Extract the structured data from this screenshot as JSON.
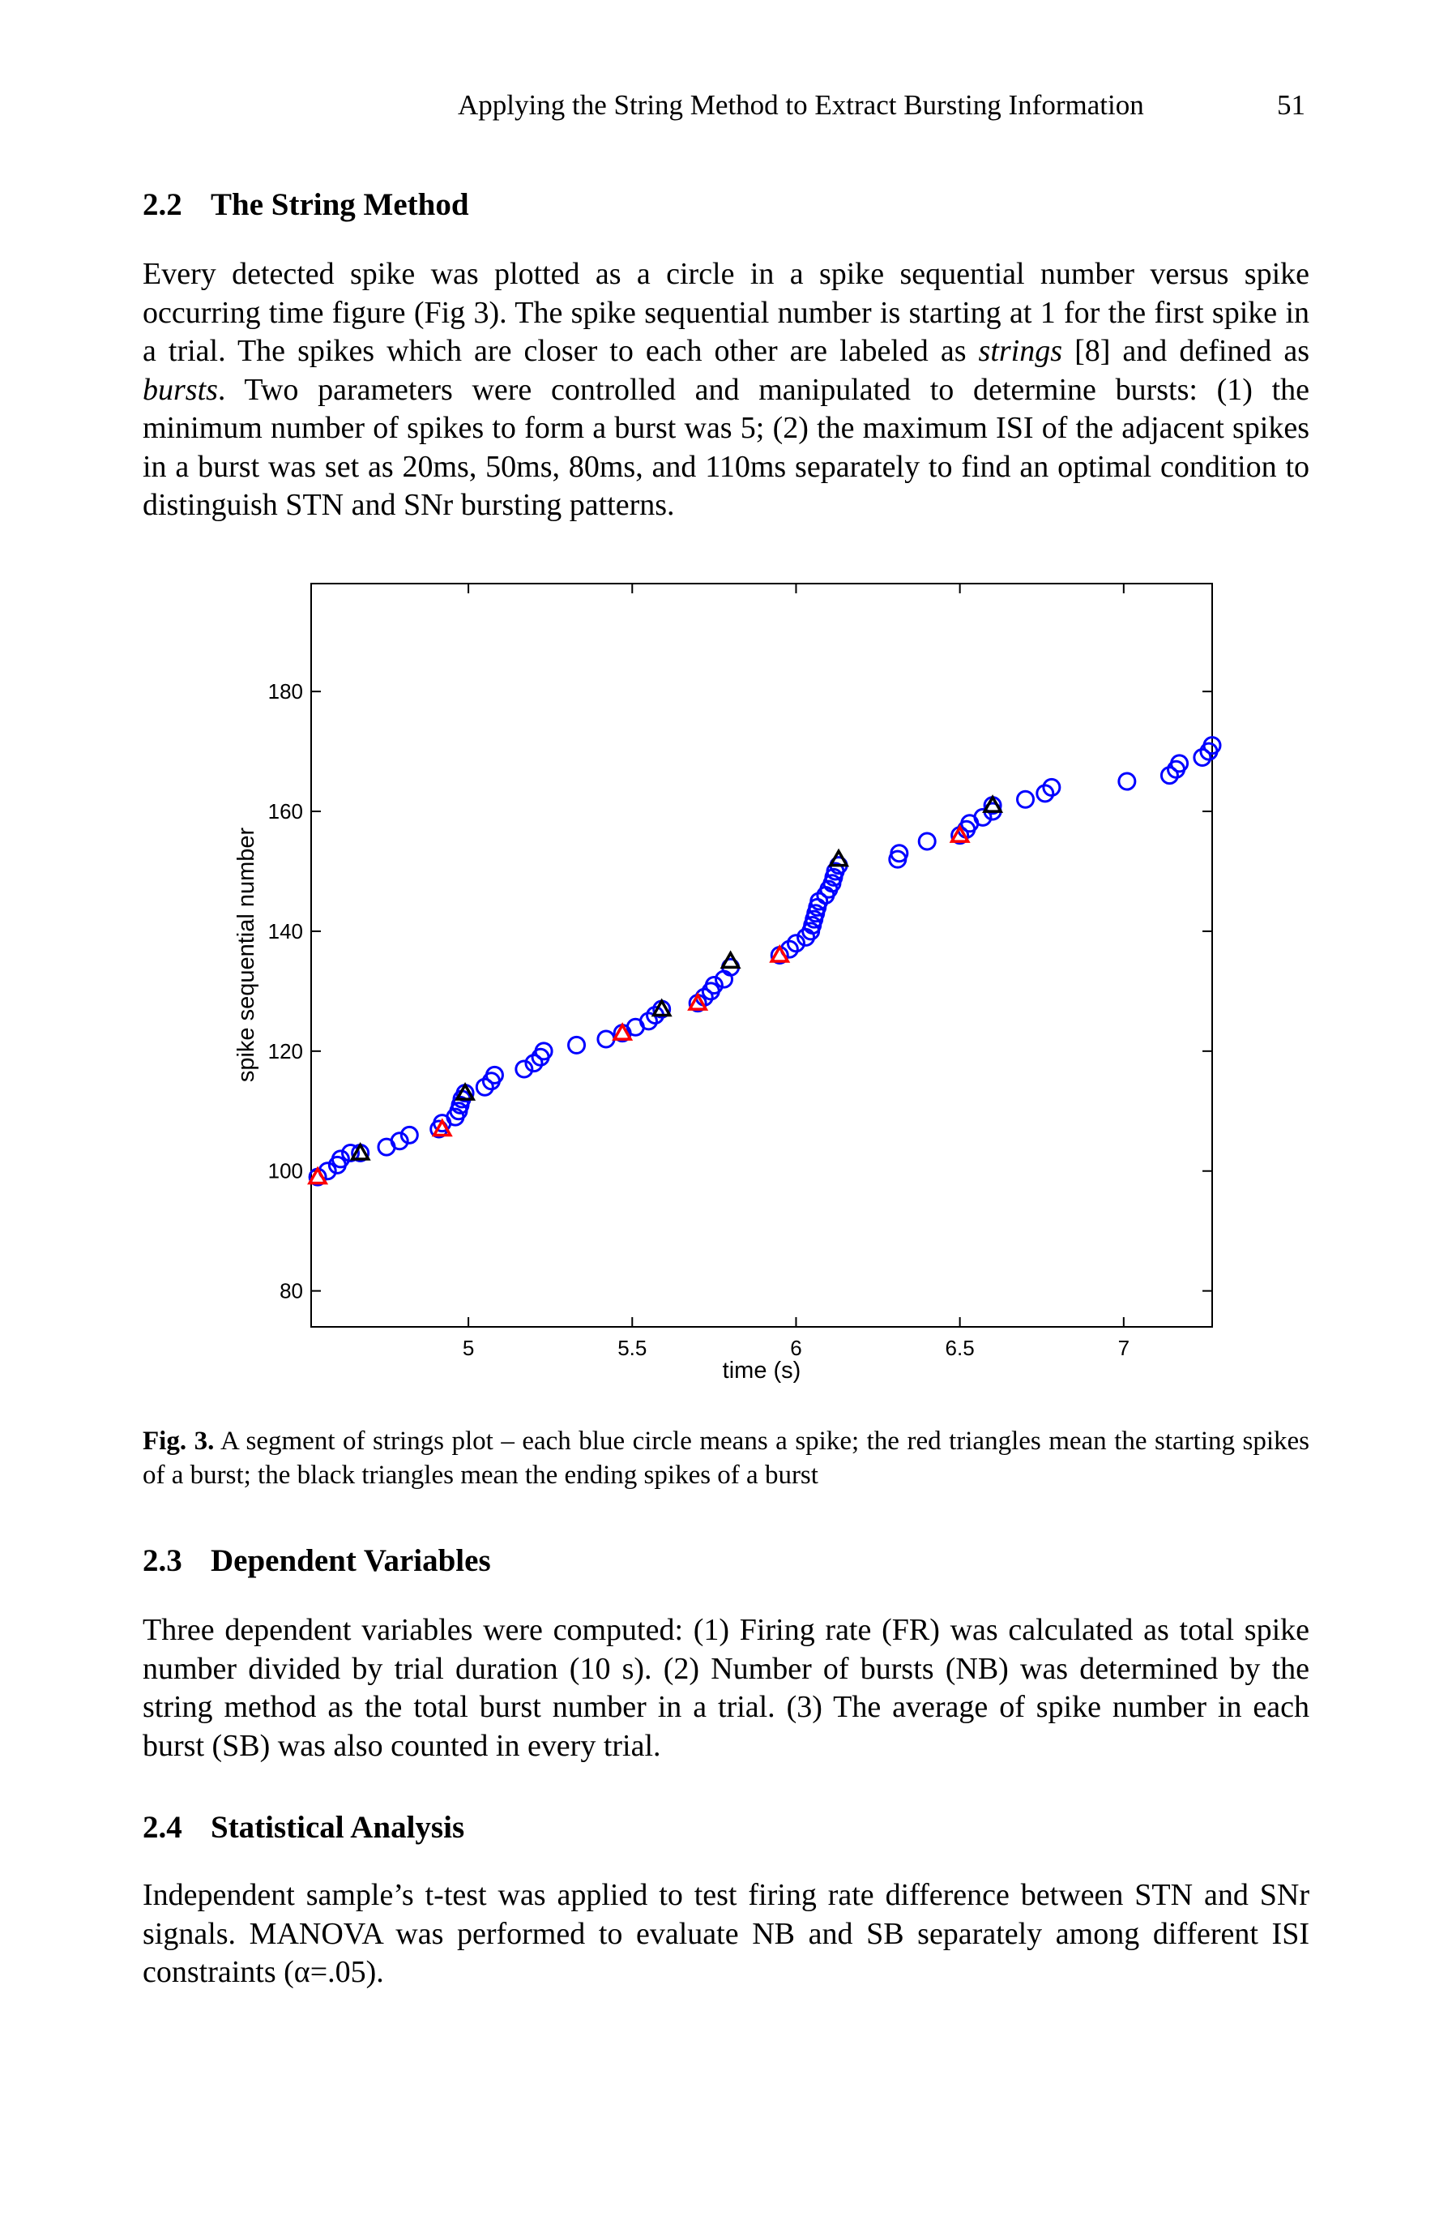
{
  "running_head": "Applying the String Method to Extract Bursting Information",
  "page_number": "51",
  "sections": {
    "s22": {
      "num": "2.2",
      "title": "The String Method"
    },
    "s23": {
      "num": "2.3",
      "title": "Dependent Variables"
    },
    "s24": {
      "num": "2.4",
      "title": "Statistical Analysis"
    }
  },
  "paragraphs": {
    "p1_a": "Every detected spike was plotted as a circle in a spike sequential number versus spike occurring time figure (Fig 3). The spike sequential number is starting at 1 for the first spike in a trial. The spikes which are closer to each other are labeled as ",
    "p1_strings": "strings",
    "p1_b": " [8] and defined as ",
    "p1_bursts": "bursts",
    "p1_c": ". Two parameters were controlled and manipulated to determine bursts: (1) the minimum number of spikes to form a burst was 5; (2) the maximum ISI of the adjacent spikes in a burst was set as 20ms, 50ms, 80ms, and 110ms separately to find an optimal condition to distinguish STN and SNr bursting patterns.",
    "p2": "Three dependent variables were computed: (1) Firing rate (FR) was calculated as total spike number divided by trial duration (10 s). (2) Number of bursts (NB) was determined by the string method as the total burst number in a trial. (3) The average of spike number in each burst (SB) was also counted in every trial.",
    "p3": "Independent sample’s t-test was applied to test firing rate difference between STN and SNr signals. MANOVA was performed to evaluate NB and SB separately among different ISI constraints (α=.05)."
  },
  "figure": {
    "caption_label": "Fig. 3.",
    "caption_text": " A segment of strings plot – each blue circle means a spike; the red triangles mean the starting spikes of a burst; the black triangles mean the ending spikes of a burst"
  },
  "chart_data": {
    "type": "scatter",
    "title": "",
    "xlabel": "time (s)",
    "ylabel": "spike sequential number",
    "xlim": [
      4.52,
      7.27
    ],
    "ylim": [
      74,
      198
    ],
    "xticks": [
      5,
      5.5,
      6,
      6.5,
      7
    ],
    "yticks": [
      80,
      100,
      120,
      140,
      160,
      180
    ],
    "grid": false,
    "colors": {
      "spike": "#0000ff",
      "burst_start": "#ff0000",
      "burst_end": "#000000"
    },
    "series": [
      {
        "marker": "circle",
        "x": [
          4.54,
          4.57,
          4.6,
          4.61,
          4.64,
          4.67,
          4.75,
          4.79,
          4.82,
          4.91,
          4.92,
          4.96,
          4.97,
          4.975,
          4.98,
          4.99,
          5.05,
          5.07,
          5.08,
          5.17,
          5.2,
          5.22,
          5.23,
          5.33,
          5.42,
          5.47,
          5.51,
          5.55,
          5.57,
          5.59,
          5.7,
          5.72,
          5.74,
          5.75,
          5.78,
          5.8,
          5.95,
          5.98,
          6.0,
          6.03,
          6.045,
          6.05,
          6.055,
          6.06,
          6.065,
          6.07,
          6.09,
          6.1,
          6.11,
          6.115,
          6.12,
          6.13,
          6.31,
          6.315,
          6.4,
          6.5,
          6.52,
          6.53,
          6.57,
          6.6,
          6.6,
          6.7,
          6.76,
          6.78,
          7.01,
          7.14,
          7.16,
          7.17,
          7.24,
          7.26,
          7.27
        ],
        "y": [
          99,
          100,
          101,
          102,
          103,
          103,
          104,
          105,
          106,
          107,
          108,
          109,
          110,
          111,
          112,
          113,
          114,
          115,
          116,
          117,
          118,
          119,
          120,
          121,
          122,
          123,
          124,
          125,
          126,
          127,
          128,
          129,
          130,
          131,
          132,
          134,
          136,
          137,
          138,
          139,
          140,
          141,
          142,
          143,
          144,
          145,
          146,
          147,
          148,
          149,
          150,
          151,
          152,
          153,
          155,
          156,
          157,
          158,
          159,
          160,
          161,
          162,
          163,
          164,
          165,
          166,
          167,
          168,
          169,
          170,
          171
        ]
      },
      {
        "marker": "triangle",
        "x": [
          4.54,
          4.92,
          5.47,
          5.7,
          5.95,
          6.5
        ],
        "y": [
          99,
          107,
          123,
          128,
          136,
          156
        ]
      },
      {
        "marker": "triangle",
        "x": [
          4.67,
          4.99,
          5.59,
          5.8,
          6.13,
          6.6
        ],
        "y": [
          103,
          113,
          127,
          135,
          152,
          161
        ]
      }
    ]
  }
}
